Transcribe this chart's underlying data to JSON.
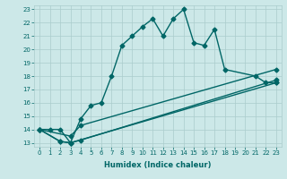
{
  "xlabel": "Humidex (Indice chaleur)",
  "ylabel": "",
  "bg_color": "#cce8e8",
  "grid_color": "#aacccc",
  "line_color": "#006666",
  "xlim": [
    -0.5,
    23.5
  ],
  "ylim": [
    12.7,
    23.3
  ],
  "xticks": [
    0,
    1,
    2,
    3,
    4,
    5,
    6,
    7,
    8,
    9,
    10,
    11,
    12,
    13,
    14,
    15,
    16,
    17,
    18,
    19,
    20,
    21,
    22,
    23
  ],
  "yticks": [
    13,
    14,
    15,
    16,
    17,
    18,
    19,
    20,
    21,
    22,
    23
  ],
  "main_line_x": [
    0,
    1,
    2,
    3,
    4,
    5,
    6,
    7,
    8,
    9,
    10,
    11,
    12,
    13,
    14,
    15,
    16,
    17,
    18,
    21,
    22,
    23
  ],
  "main_line_y": [
    14,
    14,
    14,
    13,
    14.8,
    15.8,
    16,
    18,
    20.3,
    21,
    21.7,
    22.3,
    21,
    22.3,
    23,
    20.5,
    20.3,
    21.5,
    18.5,
    18,
    17.5,
    17.5
  ],
  "line2_x": [
    0,
    2,
    3,
    23
  ],
  "line2_y": [
    14,
    13.1,
    13,
    17.5
  ],
  "line3_x": [
    0,
    2,
    3,
    4,
    23
  ],
  "line3_y": [
    14,
    13.1,
    13,
    13.2,
    17.7
  ],
  "line4_x": [
    0,
    3,
    4,
    23
  ],
  "line4_y": [
    14,
    13.5,
    14.3,
    18.5
  ],
  "marker": "D",
  "markersize": 2.5,
  "linewidth": 1.0
}
